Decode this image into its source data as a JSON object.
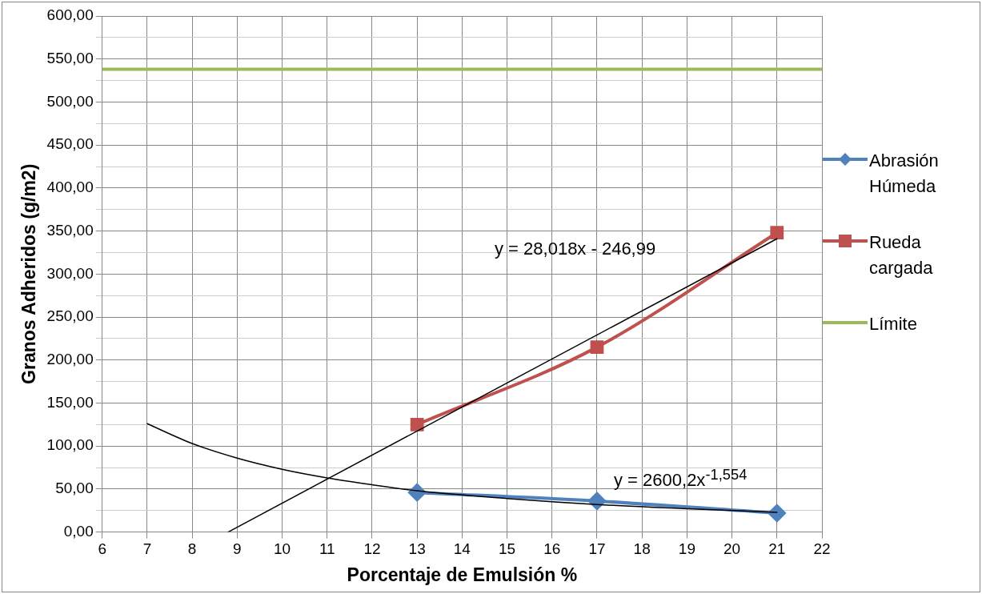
{
  "chart_data": {
    "type": "line",
    "xlabel": "Porcentaje de Emulsión %",
    "ylabel": "Granos Adheridos (g/m2)",
    "xlim": [
      6,
      22
    ],
    "xticks": [
      6,
      7,
      8,
      9,
      10,
      11,
      12,
      13,
      14,
      15,
      16,
      17,
      18,
      19,
      20,
      21,
      22
    ],
    "ylim": [
      0,
      600
    ],
    "yticks": [
      {
        "value": 0,
        "label": "0,00"
      },
      {
        "value": 25,
        "label": null
      },
      {
        "value": 50,
        "label": "50,00"
      },
      {
        "value": 75,
        "label": null
      },
      {
        "value": 100,
        "label": "100,00"
      },
      {
        "value": 125,
        "label": null
      },
      {
        "value": 150,
        "label": "150,00"
      },
      {
        "value": 175,
        "label": null
      },
      {
        "value": 200,
        "label": "200,00"
      },
      {
        "value": 225,
        "label": null
      },
      {
        "value": 250,
        "label": "250,00"
      },
      {
        "value": 275,
        "label": null
      },
      {
        "value": 300,
        "label": "300,00"
      },
      {
        "value": 325,
        "label": null
      },
      {
        "value": 350,
        "label": "350,00"
      },
      {
        "value": 375,
        "label": null
      },
      {
        "value": 400,
        "label": "400,00"
      },
      {
        "value": 425,
        "label": null
      },
      {
        "value": 450,
        "label": "450,00"
      },
      {
        "value": 475,
        "label": null
      },
      {
        "value": 500,
        "label": "500,00"
      },
      {
        "value": 525,
        "label": null
      },
      {
        "value": 550,
        "label": "550,00"
      },
      {
        "value": 575,
        "label": null
      },
      {
        "value": 600,
        "label": "600,00"
      }
    ],
    "grid": true,
    "legend": "right",
    "series": [
      {
        "name": "Abrasión Húmeda",
        "color": "#4f81bd",
        "marker": "diamond",
        "x": [
          13,
          17,
          21
        ],
        "values": [
          46,
          36,
          22
        ]
      },
      {
        "name": "Rueda cargada",
        "color": "#c0504d",
        "marker": "square",
        "x": [
          13,
          17,
          21
        ],
        "values": [
          125,
          215,
          348
        ]
      },
      {
        "name": "Límite",
        "color": "#9bbb59",
        "marker": "none",
        "x": [
          6,
          22
        ],
        "values": [
          538,
          538
        ]
      },
      {
        "color": "#000000",
        "marker": "none",
        "x": [
          8.8,
          21
        ],
        "values": [
          0,
          341
        ]
      },
      {
        "color": "#000000",
        "marker": "none",
        "x": [
          7,
          8,
          9,
          10,
          11,
          12,
          13,
          15,
          17,
          19,
          21
        ],
        "values": [
          126,
          103,
          86,
          73,
          63,
          55,
          48,
          39,
          32,
          27,
          23
        ]
      }
    ],
    "annotations": [
      "y = 28,018x - 246,99",
      "y = 2600,2x$^{-1,554}$"
    ]
  }
}
